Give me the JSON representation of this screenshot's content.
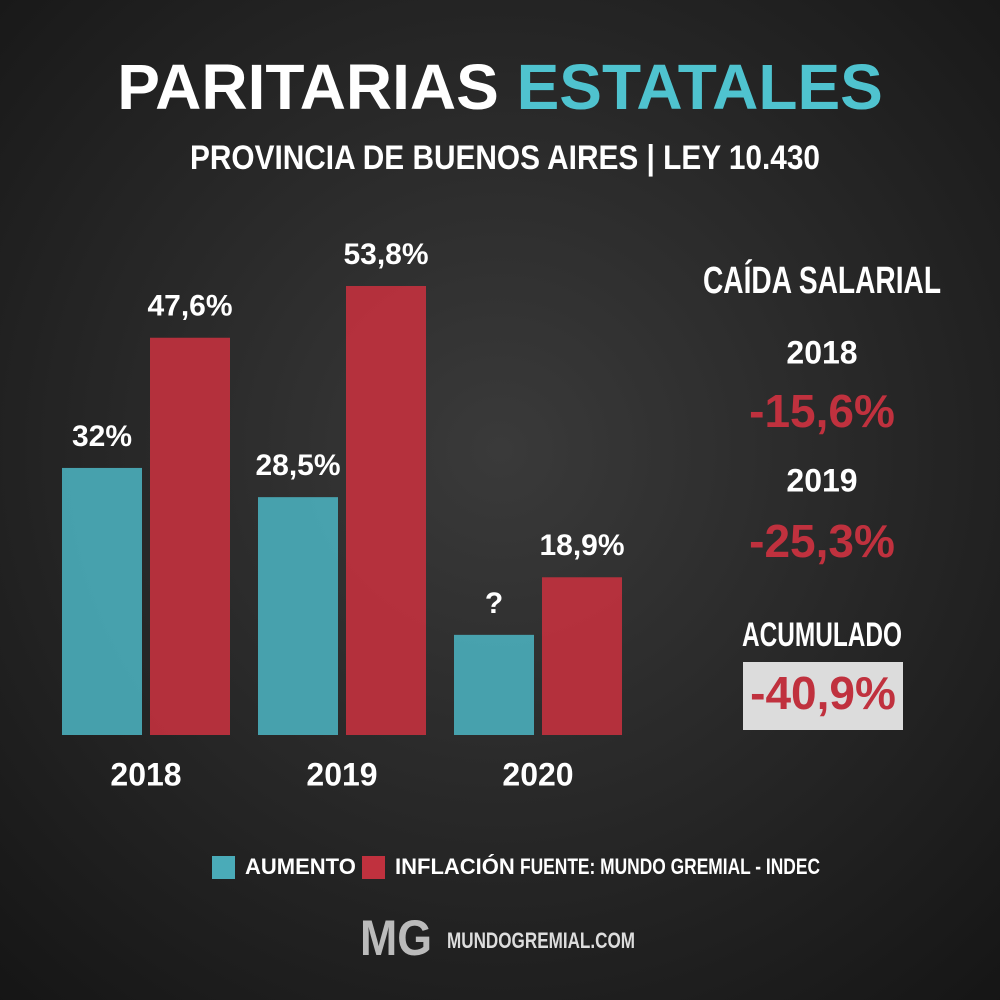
{
  "chart_data": {
    "type": "bar",
    "title": "PARITARIAS",
    "title_highlight": "ESTATALES",
    "subtitle": "PROVINCIA DE BUENOS AIRES | LEY 10.430",
    "categories": [
      "2018",
      "2019",
      "2020"
    ],
    "series": [
      {
        "name": "AUMENTO",
        "color": "#4aabb8",
        "values": [
          32,
          28.5,
          12
        ],
        "value_labels": [
          "32%",
          "28,5%",
          "?"
        ]
      },
      {
        "name": "INFLACIÓN",
        "color": "#c0313e",
        "values": [
          47.6,
          53.8,
          18.9
        ],
        "value_labels": [
          "47,6%",
          "53,8%",
          "18,9%"
        ]
      }
    ],
    "source": "FUENTE: MUNDO GREMIAL - INDEC",
    "side_panel": {
      "title": "CAÍDA SALARIAL",
      "items": [
        {
          "label": "2018",
          "value": "-15,6%"
        },
        {
          "label": "2019",
          "value": "-25,3%"
        }
      ],
      "total": {
        "label": "ACUMULADO",
        "value": "-40,9%"
      }
    },
    "footer": {
      "logo": "MG",
      "site": "MUNDOGREMIAL.COM"
    }
  }
}
